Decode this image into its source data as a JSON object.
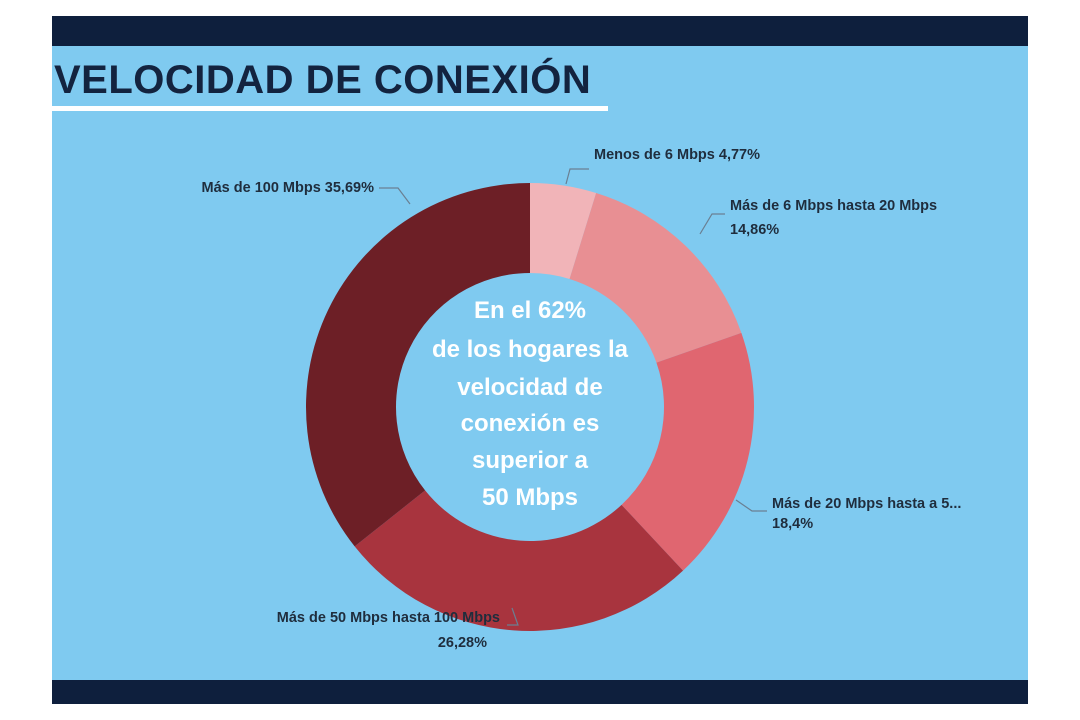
{
  "header": {
    "title": "VELOCIDAD DE CONEXIÓN"
  },
  "center_text": [
    "En el 62%",
    "de los hogares la",
    "velocidad de",
    "conexión es",
    "superior a",
    "50 Mbps"
  ],
  "colors": {
    "background": "#7fcaf0",
    "bars": "#0e1f3d",
    "slices": [
      "#f1b4b8",
      "#e88f93",
      "#e06670",
      "#a8343e",
      "#6d1f26"
    ]
  },
  "chart_data": {
    "type": "pie",
    "title": "VELOCIDAD DE CONEXIÓN",
    "categories": [
      "Menos de 6 Mbps",
      "Más de 6 Mbps hasta 20 Mbps",
      "Más de 20 Mbps hasta a 5...",
      "Más de 50 Mbps hasta 100 Mbps",
      "Más de 100 Mbps"
    ],
    "values": [
      4.77,
      14.86,
      18.4,
      26.28,
      35.69
    ],
    "value_labels": [
      "4,77%",
      "14,86%",
      "18,4%",
      "26,28%",
      "35,69%"
    ],
    "donut": true,
    "legend": "none",
    "data_label_lines": [
      [
        "Menos de 6 Mbps 4,77%"
      ],
      [
        "Más de 6 Mbps hasta 20 Mbps",
        "14,86%"
      ],
      [
        "Más de 20 Mbps hasta a 5...",
        "18,4%"
      ],
      [
        "Más de 50 Mbps hasta 100 Mbps",
        "26,28%"
      ],
      [
        "Más de 100 Mbps 35,69%"
      ]
    ]
  }
}
